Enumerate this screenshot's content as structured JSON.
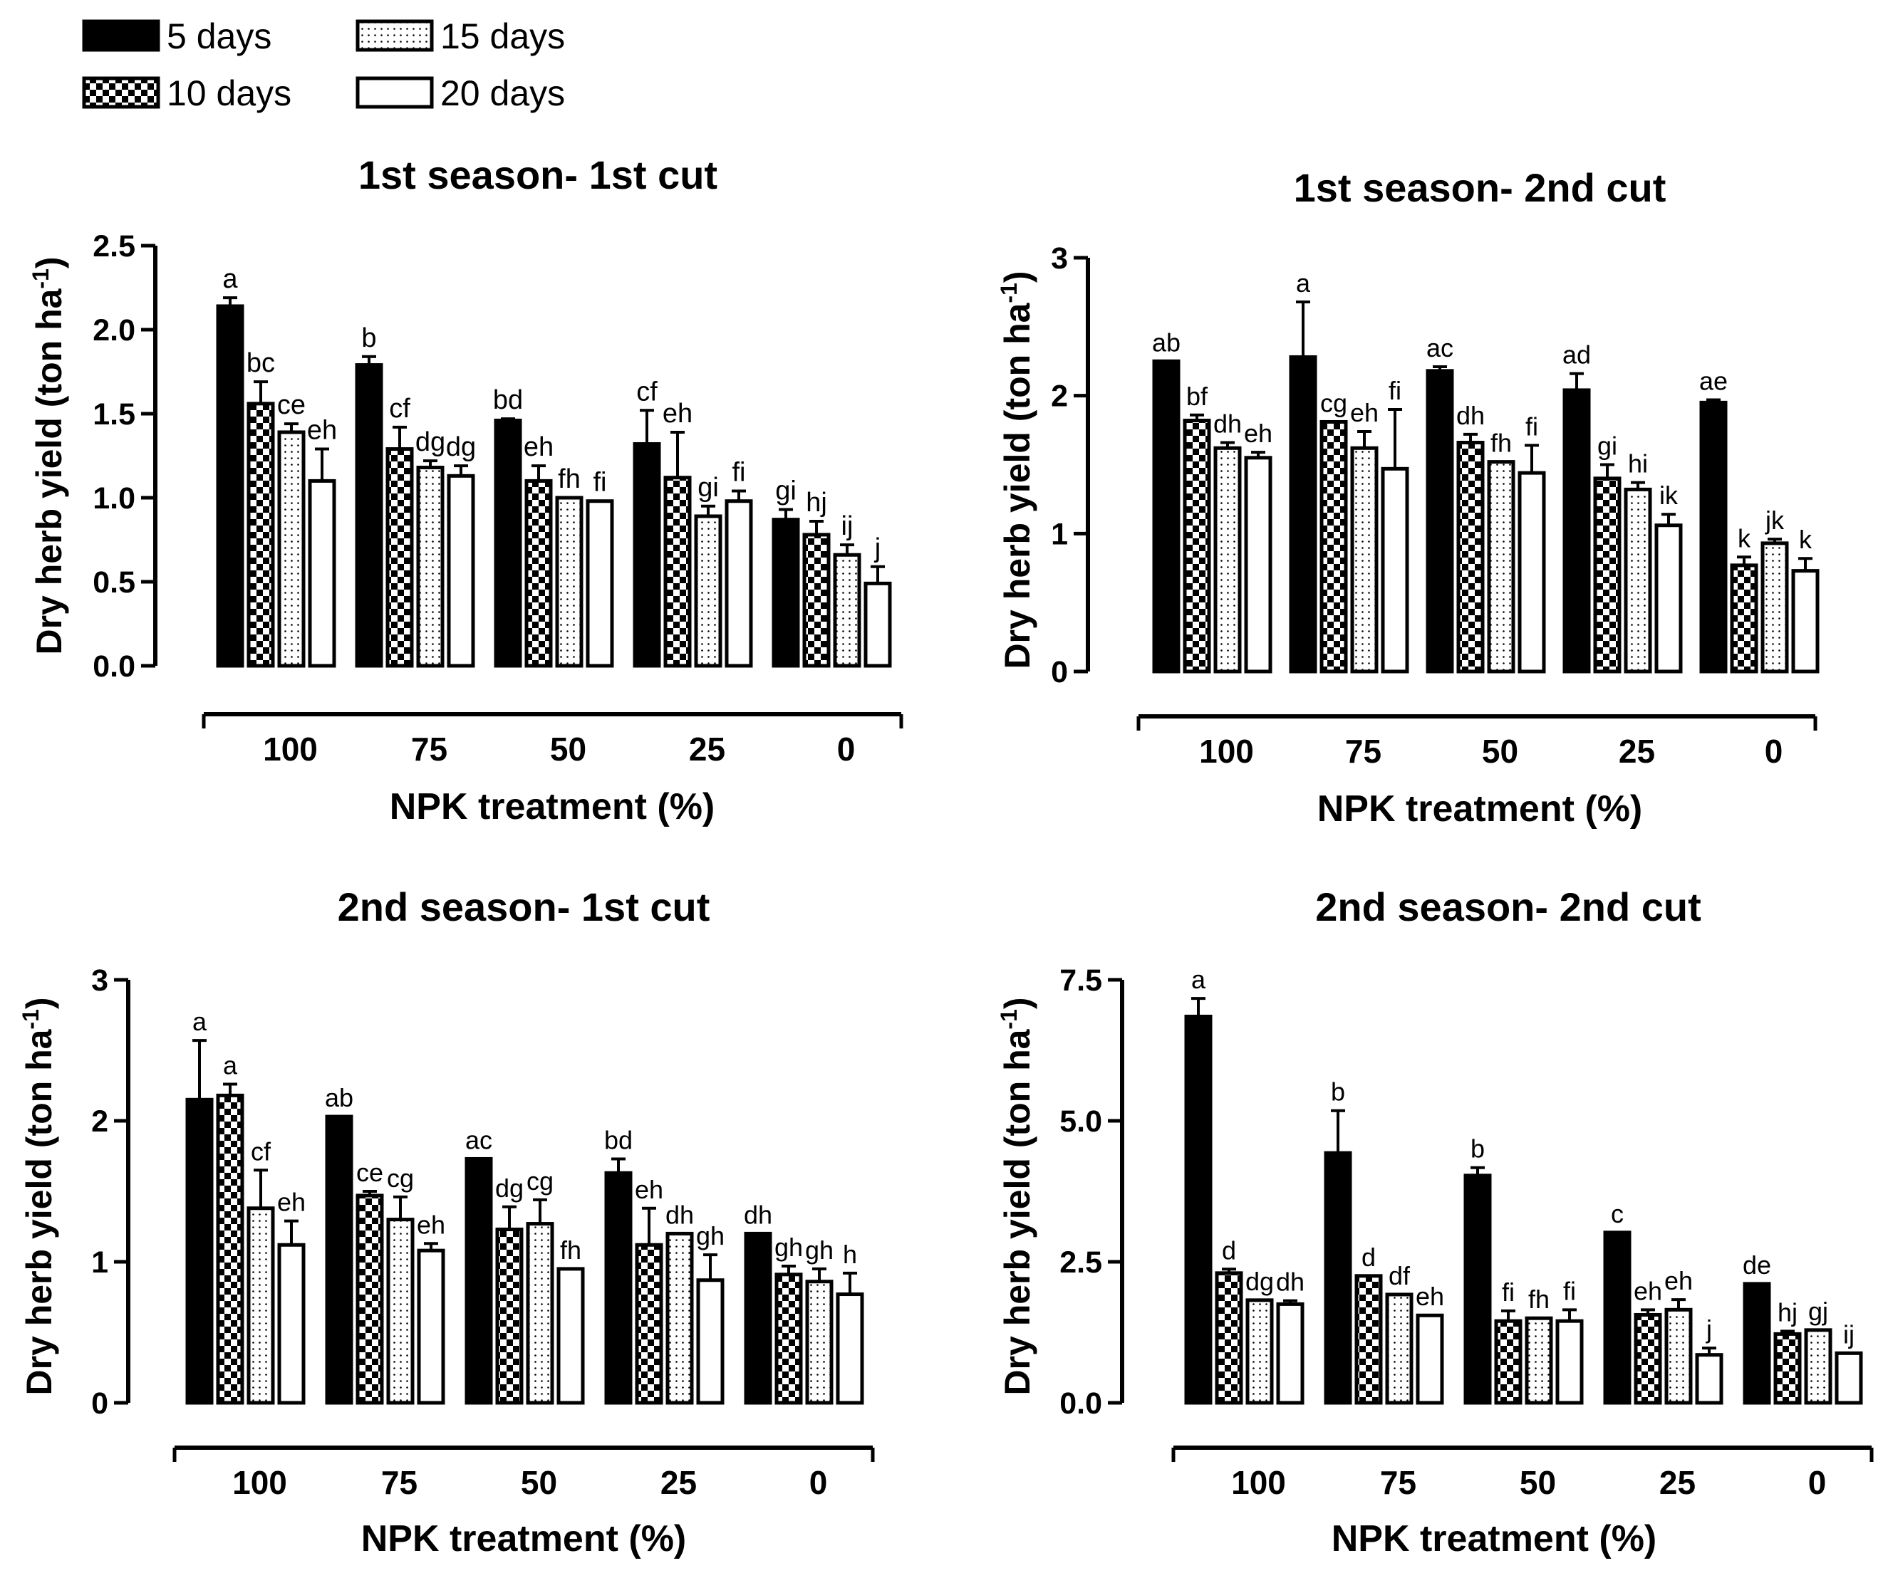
{
  "legend": {
    "items": [
      {
        "label": "5 days",
        "pattern": "solid"
      },
      {
        "label": "15 days",
        "pattern": "dots"
      },
      {
        "label": "10 days",
        "pattern": "checker"
      },
      {
        "label": "20 days",
        "pattern": "open"
      }
    ]
  },
  "colors": {
    "ink": "#000000",
    "paper": "#ffffff"
  },
  "chart_data": [
    {
      "type": "bar",
      "title": "1st season- 1st cut",
      "xlabel": "NPK treatment (%)",
      "ylabel": "Dry herb yield (ton ha-1)",
      "ylim": [
        0,
        2.5
      ],
      "yticks": [
        "0.0",
        "0.5",
        "1.0",
        "1.5",
        "2.0",
        "2.5"
      ],
      "categories": [
        "100",
        "75",
        "50",
        "25",
        "0"
      ],
      "series": [
        {
          "name": "5 days",
          "values": [
            2.14,
            1.79,
            1.46,
            1.32,
            0.87
          ],
          "errors": [
            0.05,
            0.05,
            0.01,
            0.2,
            0.06
          ],
          "labels": [
            "a",
            "b",
            "bd",
            "cf",
            "gi"
          ]
        },
        {
          "name": "10 days",
          "values": [
            1.56,
            1.29,
            1.1,
            1.12,
            0.78
          ],
          "errors": [
            0.13,
            0.13,
            0.09,
            0.27,
            0.08
          ],
          "labels": [
            "bc",
            "cf",
            "eh",
            "eh",
            "hj"
          ]
        },
        {
          "name": "15 days",
          "values": [
            1.39,
            1.18,
            1.0,
            0.89,
            0.66
          ],
          "errors": [
            0.05,
            0.04,
            0.0,
            0.06,
            0.06
          ],
          "labels": [
            "ce",
            "dg",
            "fh",
            "gi",
            "ij"
          ]
        },
        {
          "name": "20 days",
          "values": [
            1.1,
            1.13,
            0.98,
            0.98,
            0.49
          ],
          "errors": [
            0.19,
            0.06,
            0.0,
            0.06,
            0.1
          ],
          "labels": [
            "eh",
            "dg",
            "fi",
            "fi",
            "j"
          ]
        }
      ]
    },
    {
      "type": "bar",
      "title": "1st season- 2nd cut",
      "xlabel": "NPK treatment (%)",
      "ylabel": "Dry herb yield (ton ha-1)",
      "ylim": [
        0,
        3
      ],
      "yticks": [
        "0",
        "1",
        "2",
        "3"
      ],
      "categories": [
        "100",
        "75",
        "50",
        "25",
        "0"
      ],
      "series": [
        {
          "name": "5 days",
          "values": [
            2.25,
            2.28,
            2.18,
            2.04,
            1.95
          ],
          "errors": [
            0.0,
            0.4,
            0.03,
            0.12,
            0.02
          ],
          "labels": [
            "ab",
            "a",
            "ac",
            "ad",
            "ae"
          ]
        },
        {
          "name": "10 days",
          "values": [
            1.82,
            1.81,
            1.66,
            1.4,
            0.77
          ],
          "errors": [
            0.04,
            0.0,
            0.06,
            0.1,
            0.06
          ],
          "labels": [
            "bf",
            "cg",
            "dh",
            "gi",
            "k"
          ]
        },
        {
          "name": "15 days",
          "values": [
            1.62,
            1.62,
            1.52,
            1.32,
            0.93
          ],
          "errors": [
            0.04,
            0.12,
            0.0,
            0.05,
            0.03
          ],
          "labels": [
            "dh",
            "eh",
            "fh",
            "hi",
            "jk"
          ]
        },
        {
          "name": "20 days",
          "values": [
            1.55,
            1.47,
            1.44,
            1.06,
            0.73
          ],
          "errors": [
            0.04,
            0.43,
            0.2,
            0.08,
            0.09
          ],
          "labels": [
            "eh",
            "fi",
            "fi",
            "ik",
            "k"
          ]
        }
      ]
    },
    {
      "type": "bar",
      "title": "2nd season- 1st cut",
      "xlabel": "NPK treatment (%)",
      "ylabel": "Dry herb yield (ton ha-1)",
      "ylim": [
        0,
        3
      ],
      "yticks": [
        "0",
        "1",
        "2",
        "3"
      ],
      "categories": [
        "100",
        "75",
        "50",
        "25",
        "0"
      ],
      "series": [
        {
          "name": "5 days",
          "values": [
            2.15,
            2.03,
            1.73,
            1.63,
            1.2
          ],
          "errors": [
            0.42,
            0.0,
            0.0,
            0.1,
            0.0
          ],
          "labels": [
            "a",
            "ab",
            "ac",
            "bd",
            "dh"
          ]
        },
        {
          "name": "10 days",
          "values": [
            2.18,
            1.47,
            1.23,
            1.12,
            0.91
          ],
          "errors": [
            0.08,
            0.03,
            0.16,
            0.26,
            0.06
          ],
          "labels": [
            "a",
            "ce",
            "dg",
            "eh",
            "gh"
          ]
        },
        {
          "name": "15 days",
          "values": [
            1.38,
            1.3,
            1.27,
            1.2,
            0.86
          ],
          "errors": [
            0.27,
            0.16,
            0.17,
            0.0,
            0.09
          ],
          "labels": [
            "cf",
            "cg",
            "cg",
            "dh",
            "gh"
          ]
        },
        {
          "name": "20 days",
          "values": [
            1.12,
            1.08,
            0.95,
            0.87,
            0.77
          ],
          "errors": [
            0.17,
            0.05,
            0.0,
            0.18,
            0.15
          ],
          "labels": [
            "eh",
            "eh",
            "fh",
            "gh",
            "h"
          ]
        }
      ]
    },
    {
      "type": "bar",
      "title": "2nd season- 2nd cut",
      "xlabel": "NPK treatment (%)",
      "ylabel": "Dry herb yield (ton ha-1)",
      "ylim": [
        0,
        7.5
      ],
      "yticks": [
        "0.0",
        "2.5",
        "5.0",
        "7.5"
      ],
      "categories": [
        "100",
        "75",
        "50",
        "25",
        "0"
      ],
      "series": [
        {
          "name": "5 days",
          "values": [
            6.85,
            4.43,
            4.03,
            3.02,
            2.11
          ],
          "errors": [
            0.32,
            0.75,
            0.14,
            0.0,
            0.0
          ],
          "labels": [
            "a",
            "b",
            "b",
            "c",
            "de"
          ]
        },
        {
          "name": "10 days",
          "values": [
            2.3,
            2.25,
            1.45,
            1.56,
            1.22
          ],
          "errors": [
            0.07,
            0.0,
            0.18,
            0.09,
            0.05
          ],
          "labels": [
            "d",
            "d",
            "fi",
            "eh",
            "hj"
          ]
        },
        {
          "name": "15 days",
          "values": [
            1.82,
            1.92,
            1.5,
            1.65,
            1.29
          ],
          "errors": [
            0.0,
            0.0,
            0.0,
            0.18,
            0.0
          ],
          "labels": [
            "dg",
            "df",
            "fh",
            "eh",
            "gj"
          ]
        },
        {
          "name": "20 days",
          "values": [
            1.75,
            1.55,
            1.45,
            0.85,
            0.88
          ],
          "errors": [
            0.06,
            0.0,
            0.2,
            0.12,
            0.0
          ],
          "labels": [
            "dh",
            "eh",
            "fi",
            "j",
            "ij"
          ]
        }
      ]
    }
  ]
}
